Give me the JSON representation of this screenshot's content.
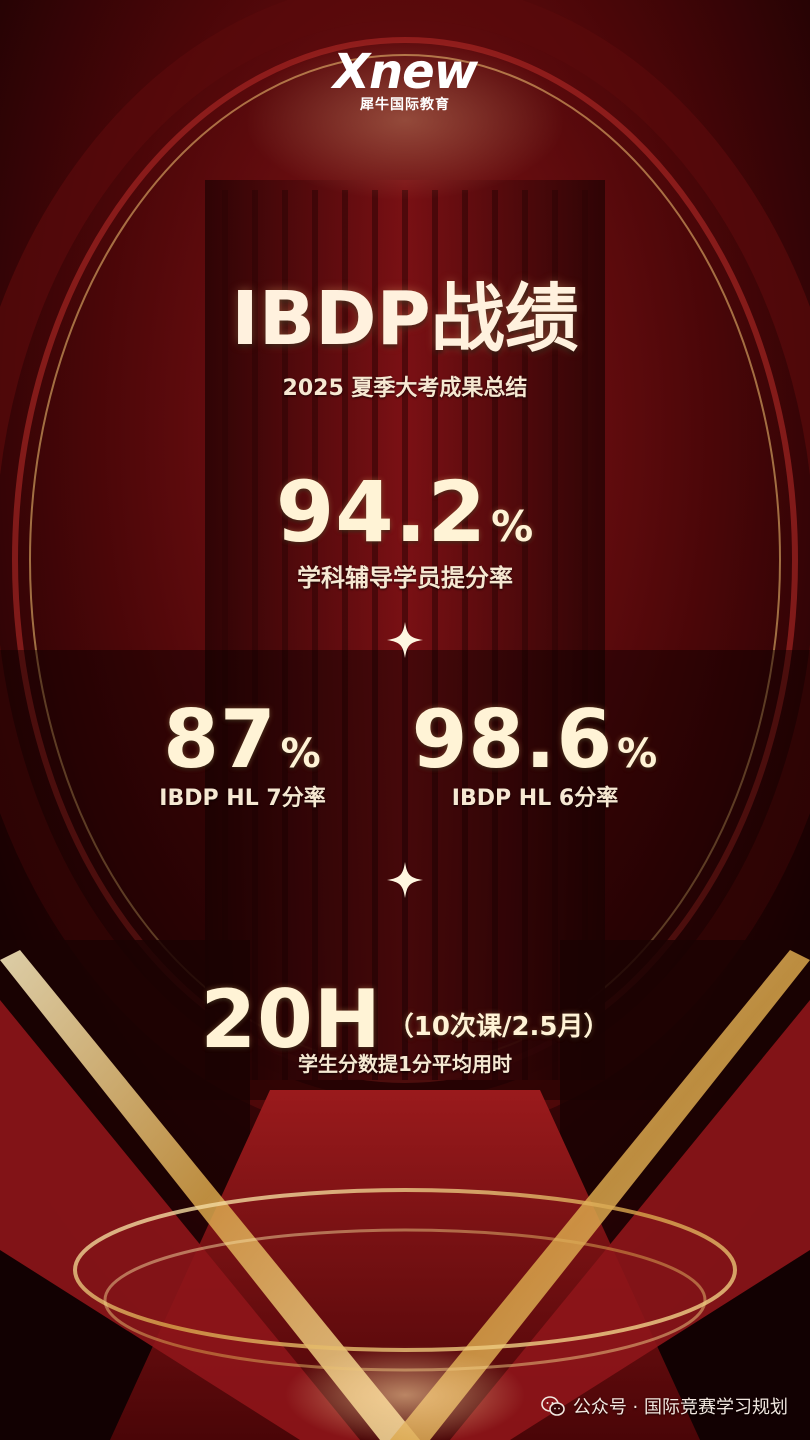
{
  "brand": {
    "wordmark": "Xnew",
    "subtitle": "犀牛国际教育"
  },
  "header": {
    "title": "IBDP战绩",
    "subtitle": "2025 夏季大考成果总结"
  },
  "stats": {
    "main": {
      "value": "94.2",
      "unit": "%",
      "label": "学科辅导学员提分率"
    },
    "left": {
      "value": "87",
      "unit": "%",
      "label": "IBDP HL 7分率"
    },
    "right": {
      "value": "98.6",
      "unit": "%",
      "label": "IBDP HL 6分率"
    },
    "time": {
      "value": "20H",
      "note": "（10次课/2.5月）",
      "label": "学生分数提1分平均用时"
    }
  },
  "footer": {
    "text": "公众号 · 国际竞赛学习规划",
    "icon": "wechat-icon"
  },
  "colors": {
    "background": "#1a0304",
    "curtain": "#6e0d10",
    "gold": "#f3d58f",
    "text": "#fff3d6"
  }
}
